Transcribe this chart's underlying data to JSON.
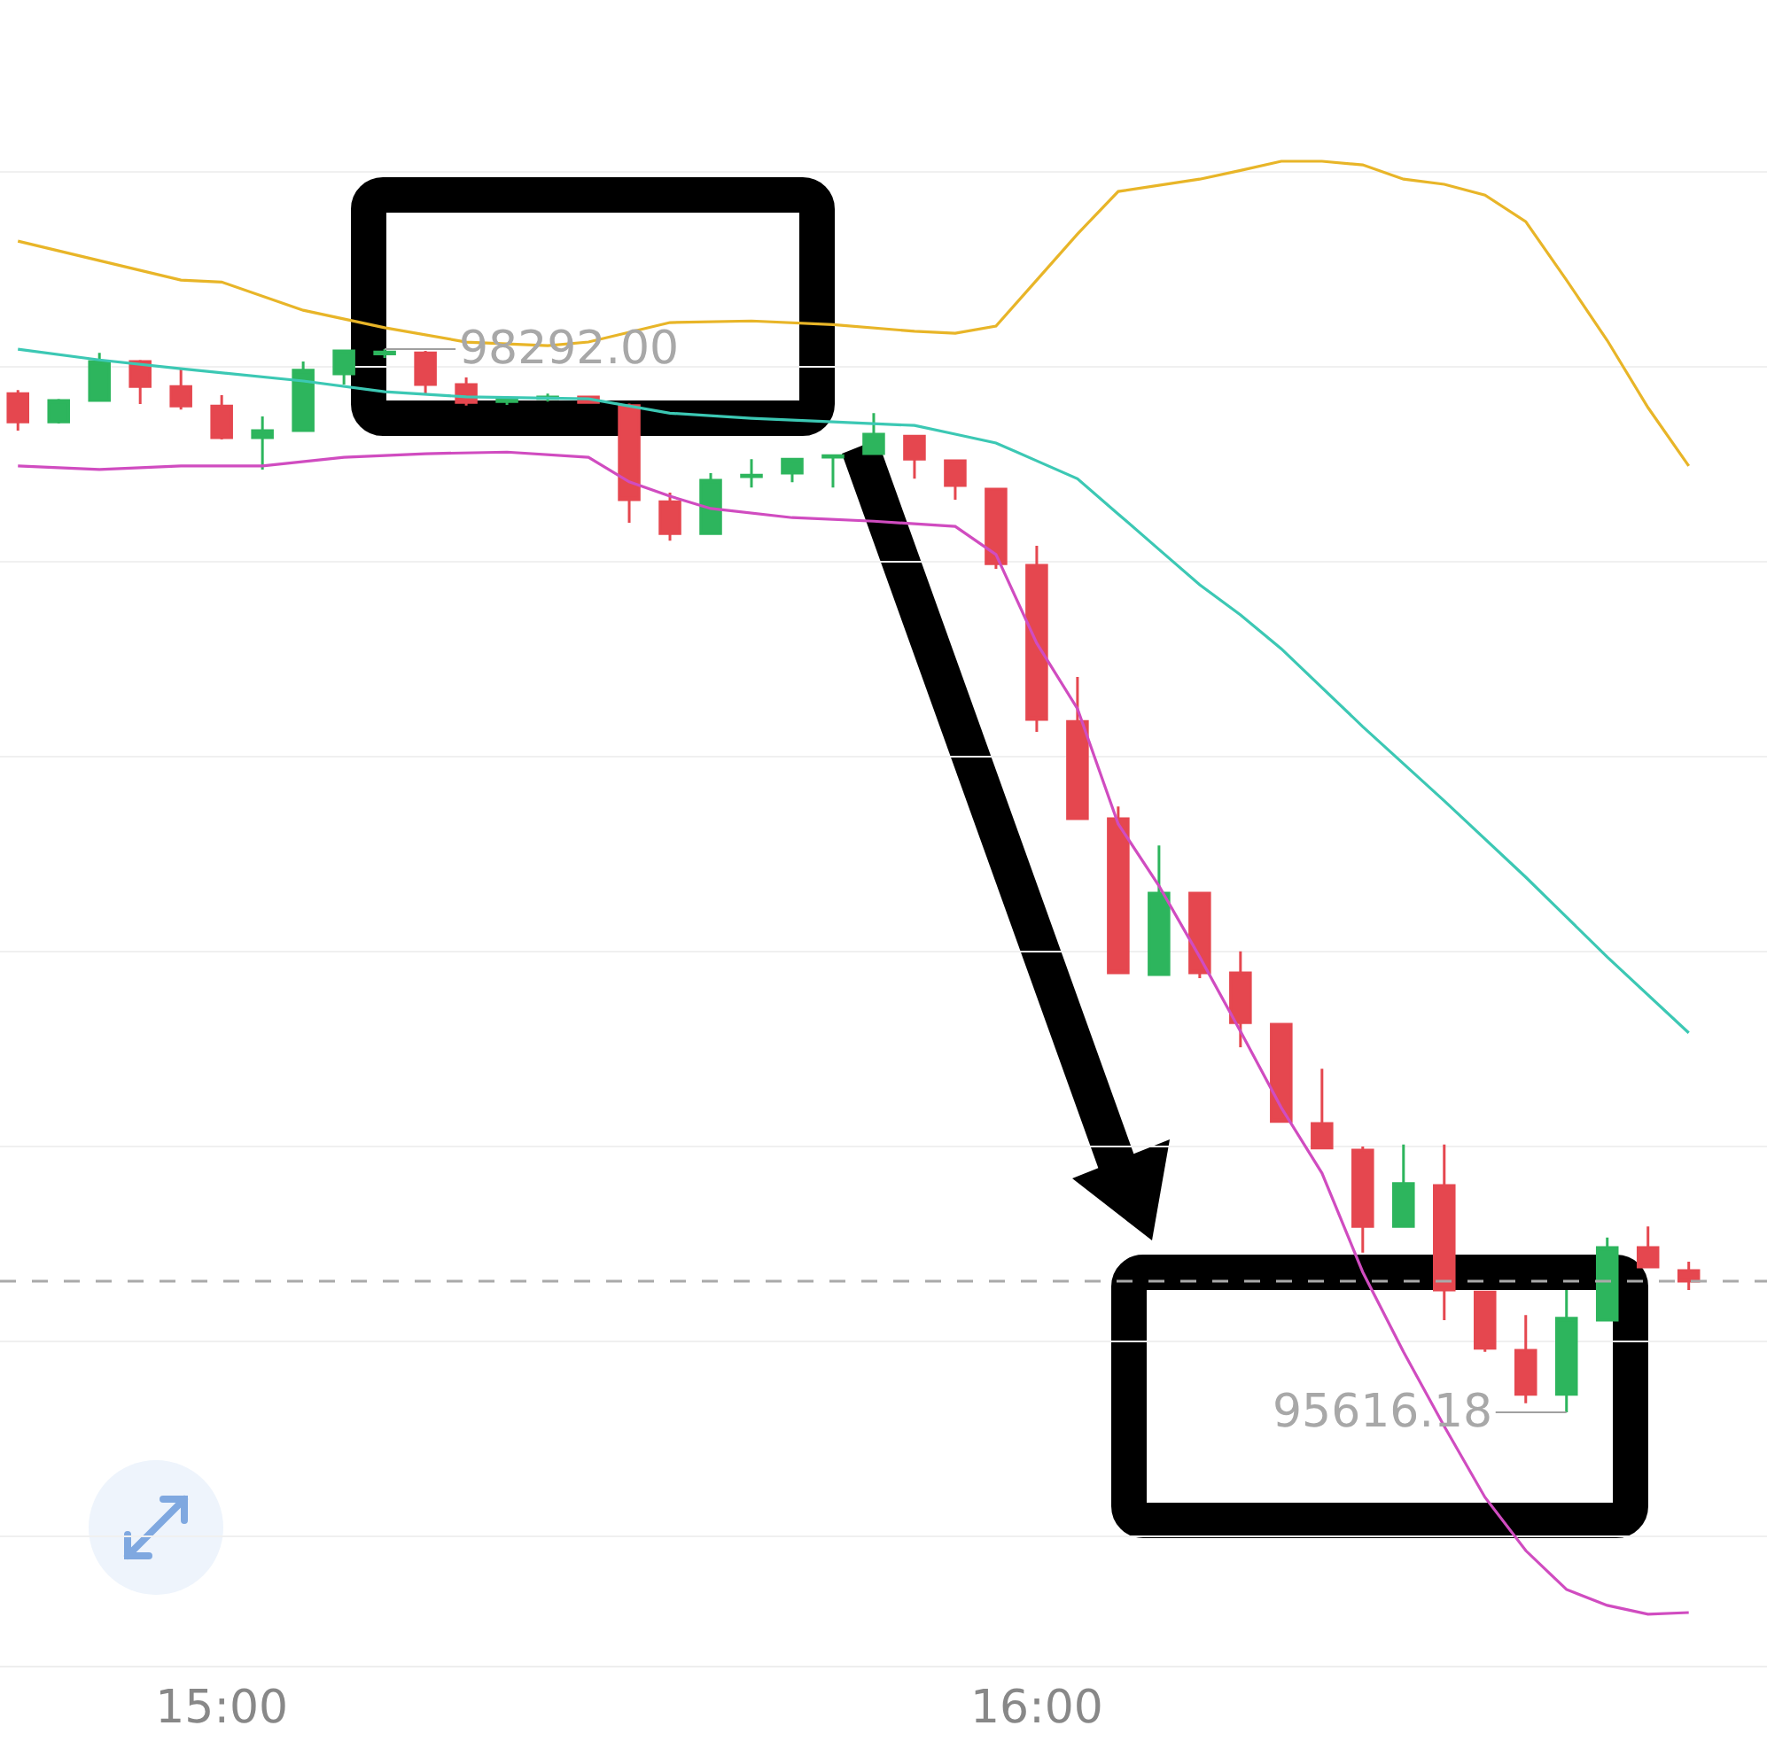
{
  "chart_data": {
    "type": "candlestick",
    "x": [
      14.75,
      14.8,
      14.85,
      14.9,
      14.95,
      15,
      15.05,
      15.1,
      15.15,
      15.2,
      15.25,
      15.3,
      15.35,
      15.4,
      15.45,
      15.5,
      15.55,
      15.6,
      15.65,
      15.7,
      15.75,
      15.8,
      15.85,
      15.9,
      15.95,
      16,
      16.05,
      16.1,
      16.15,
      16.2,
      16.25,
      16.3,
      16.35,
      16.4,
      16.45,
      16.5,
      16.55,
      16.6,
      16.65,
      16.7,
      16.75,
      16.8
    ],
    "ohlc": [
      [
        98180,
        98189,
        98087,
        98109
      ],
      [
        98109,
        98167,
        98105,
        98163
      ],
      [
        98163,
        98283,
        98160,
        98261
      ],
      [
        98261,
        98265,
        98154,
        98198
      ],
      [
        98198,
        98243,
        98140,
        98149
      ],
      [
        98149,
        98176,
        98065,
        98069
      ],
      [
        98069,
        98123,
        97989,
        98087
      ],
      [
        98087,
        98261,
        98085,
        98239
      ],
      [
        98230,
        98290,
        98203,
        98288
      ],
      [
        98280,
        98292,
        98270,
        98285
      ],
      [
        98283,
        98288,
        98180,
        98203
      ],
      [
        98203,
        98221,
        98150,
        98158
      ],
      [
        98160,
        98172,
        98152,
        98165
      ],
      [
        98168,
        98180,
        98160,
        98172
      ],
      [
        98172,
        98175,
        98155,
        98158
      ],
      [
        98150,
        98155,
        97855,
        97913
      ],
      [
        97908,
        97931,
        97810,
        97828
      ],
      [
        97828,
        97980,
        97825,
        97962
      ],
      [
        97971,
        98015,
        97944,
        97975
      ],
      [
        97980,
        98018,
        97957,
        98015
      ],
      [
        98020,
        98026,
        97944,
        98024
      ],
      [
        98029,
        98131,
        98027,
        98078
      ],
      [
        98073,
        98075,
        97966,
        98015
      ],
      [
        98011,
        98013,
        97913,
        97949
      ],
      [
        97940,
        97942,
        97739,
        97752
      ],
      [
        97748,
        97797,
        97329,
        97360
      ],
      [
        97355,
        97467,
        97108,
        97110
      ],
      [
        97110,
        97141,
        96720,
        96722
      ],
      [
        96718,
        97043,
        96716,
        96923
      ],
      [
        96923,
        96925,
        96709,
        96722
      ],
      [
        96722,
        96776,
        96535,
        96597
      ],
      [
        96593,
        96595,
        96346,
        96348
      ],
      [
        96343,
        96481,
        96279,
        96281
      ],
      [
        96276,
        96285,
        96018,
        96084
      ],
      [
        96084,
        96290,
        96082,
        96192
      ],
      [
        96187,
        96290,
        95848,
        95924
      ],
      [
        95919,
        95921,
        95768,
        95777
      ],
      [
        95772,
        95861,
        95639,
        95661
      ],
      [
        95661,
        95924,
        95616.18,
        95853
      ],
      [
        95848,
        96056,
        95846,
        96031
      ],
      [
        96031,
        96084,
        95980,
        95982
      ],
      [
        95973,
        95995,
        95924,
        95946
      ]
    ],
    "colors": [
      "#e5474f",
      "#2db55d",
      "#2db55d",
      "#e5474f",
      "#e5474f",
      "#e5474f",
      "#2db55d",
      "#2db55d",
      "#2db55d",
      "#2db55d",
      "#e5474f",
      "#e5474f",
      "#2db55d",
      "#2db55d",
      "#e5474f",
      "#e5474f",
      "#e5474f",
      "#2db55d",
      "#2db55d",
      "#2db55d",
      "#2db55d",
      "#2db55d",
      "#e5474f",
      "#e5474f",
      "#e5474f",
      "#e5474f",
      "#e5474f",
      "#e5474f",
      "#2db55d",
      "#e5474f",
      "#e5474f",
      "#e5474f",
      "#e5474f",
      "#e5474f",
      "#2db55d",
      "#e5474f",
      "#e5474f",
      "#e5474f",
      "#2db55d",
      "#2db55d",
      "#e5474f",
      "#e5474f"
    ],
    "series": [
      {
        "type": "line",
        "color": "#e8b528",
        "x": [
          14.75,
          14.85,
          14.95,
          15,
          15.1,
          15.2,
          15.3,
          15.4,
          15.45,
          15.55,
          15.65,
          15.75,
          15.85,
          15.9,
          15.95,
          16,
          16.05,
          16.1,
          16.2,
          16.25,
          16.3,
          16.35,
          16.4,
          16.45,
          16.5,
          16.55,
          16.6,
          16.65,
          16.7,
          16.75,
          16.8
        ],
        "values": [
          98564,
          98515,
          98466,
          98461,
          98390,
          98346,
          98310,
          98301,
          98310,
          98359,
          98363,
          98354,
          98337,
          98332,
          98350,
          98466,
          98582,
          98689,
          98720,
          98742,
          98765,
          98765,
          98756,
          98720,
          98707,
          98680,
          98613,
          98466,
          98314,
          98145,
          97998
        ]
      },
      {
        "type": "line",
        "color": "#3cc8b4",
        "x": [
          14.75,
          14.85,
          14.95,
          15.1,
          15.2,
          15.3,
          15.45,
          15.55,
          15.65,
          15.75,
          15.85,
          15.9,
          15.95,
          16,
          16.05,
          16.1,
          16.15,
          16.2,
          16.25,
          16.3,
          16.4,
          16.5,
          16.6,
          16.7,
          16.8
        ],
        "values": [
          98292,
          98265,
          98243,
          98212,
          98185,
          98172,
          98167,
          98131,
          98118,
          98109,
          98100,
          98078,
          98056,
          98011,
          97966,
          97877,
          97788,
          97699,
          97623,
          97538,
          97342,
          97155,
          96963,
          96762,
          96571
        ]
      },
      {
        "type": "line",
        "color": "#d04cc0",
        "x": [
          14.75,
          14.85,
          14.95,
          15.05,
          15.15,
          15.25,
          15.35,
          15.45,
          15.5,
          15.55,
          15.6,
          15.7,
          15.8,
          15.9,
          15.95,
          16,
          16.05,
          16.1,
          16.15,
          16.2,
          16.25,
          16.3,
          16.35,
          16.4,
          16.45,
          16.5,
          16.55,
          16.6,
          16.65,
          16.7,
          16.75,
          16.8
        ],
        "values": [
          97998,
          97989,
          97998,
          97998,
          98020,
          98029,
          98033,
          98020,
          97958,
          97922,
          97891,
          97868,
          97859,
          97846,
          97775,
          97552,
          97387,
          97097,
          96941,
          96762,
          96575,
          96383,
          96218,
          95969,
          95768,
          95581,
          95402,
          95268,
          95170,
          95130,
          95108,
          95112
        ]
      }
    ],
    "xlim": [
      14.728,
      16.896
    ],
    "xticks": [
      {
        "value": 15,
        "label": "15:00"
      },
      {
        "value": 16,
        "label": "16:00"
      }
    ],
    "yticks": [
      {
        "value": 98738,
        "label": null
      },
      {
        "value": 98247,
        "label": null
      },
      {
        "value": 97757,
        "label": null
      },
      {
        "value": 97266,
        "label": null
      },
      {
        "value": 96776,
        "label": null
      },
      {
        "value": 96285,
        "label": null
      },
      {
        "value": 95795,
        "label": null
      },
      {
        "value": 95304,
        "label": null
      }
    ],
    "grid": "y",
    "tick_labels": "x",
    "ref_lines": [
      {
        "axis": "y",
        "value": 95946,
        "line_style": "dashed",
        "color": "#aaaaaa"
      }
    ],
    "annotations": [
      {
        "text": "98292.00",
        "x": 15.2,
        "y": 98292
      },
      {
        "text": "95616.18",
        "x": 16.65,
        "y": 95616.18
      }
    ]
  }
}
